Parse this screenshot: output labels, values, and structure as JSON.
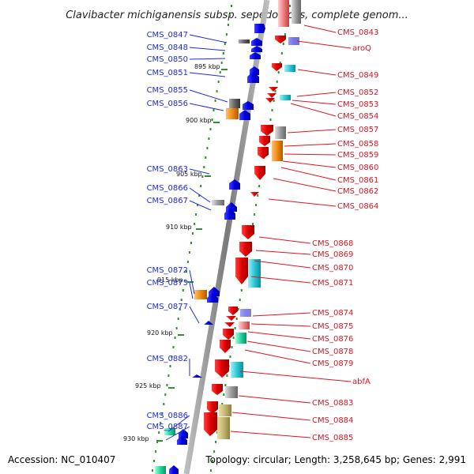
{
  "title": "Clavibacter michiganensis subsp. sepedonicus, complete genom...",
  "footer": {
    "accession": "Accession: NC_010407",
    "topology": "Topology: circular; Length: 3,258,645 bp; Genes: 2,991"
  },
  "colors": {
    "backbone": "#8a8a8a",
    "dots": "#2f8f2f",
    "forward_label": "#1f2bd6",
    "reverse_label": "#e0141e",
    "forward_gene": "#1010ee",
    "reverse_gene": "#ee1010"
  },
  "ticks": [
    {
      "label": "895 kbp"
    },
    {
      "label": "900 kbp"
    },
    {
      "label": "905 kbp"
    },
    {
      "label": "910 kbp"
    },
    {
      "label": "915 kbp"
    },
    {
      "label": "920 kbp"
    },
    {
      "label": "925 kbp"
    },
    {
      "label": "930 kbp"
    }
  ],
  "left_labels": [
    "CMS_0847",
    "CMS_0848",
    "CMS_0850",
    "CMS_0851",
    "CMS_0855",
    "CMS_0856",
    "CMS_0863",
    "CMS_0866",
    "CMS_0867",
    "CMS_0872",
    "CMS_0873",
    "CMS_0877",
    "CMS_0882",
    "CMS_0886",
    "CMS_0887"
  ],
  "right_labels": [
    "CMS_0843",
    "aroQ",
    "CMS_0849",
    "CMS_0852",
    "CMS_0853",
    "CMS_0854",
    "CMS_0857",
    "CMS_0858",
    "CMS_0859",
    "CMS_0860",
    "CMS_0861",
    "CMS_0862",
    "CMS_0864",
    "CMS_0868",
    "CMS_0869",
    "CMS_0870",
    "CMS_0871",
    "CMS_0874",
    "CMS_0875",
    "CMS_0876",
    "CMS_0878",
    "CMS_0879",
    "abfA",
    "CMS_0883",
    "CMS_0884",
    "CMS_0885"
  ]
}
